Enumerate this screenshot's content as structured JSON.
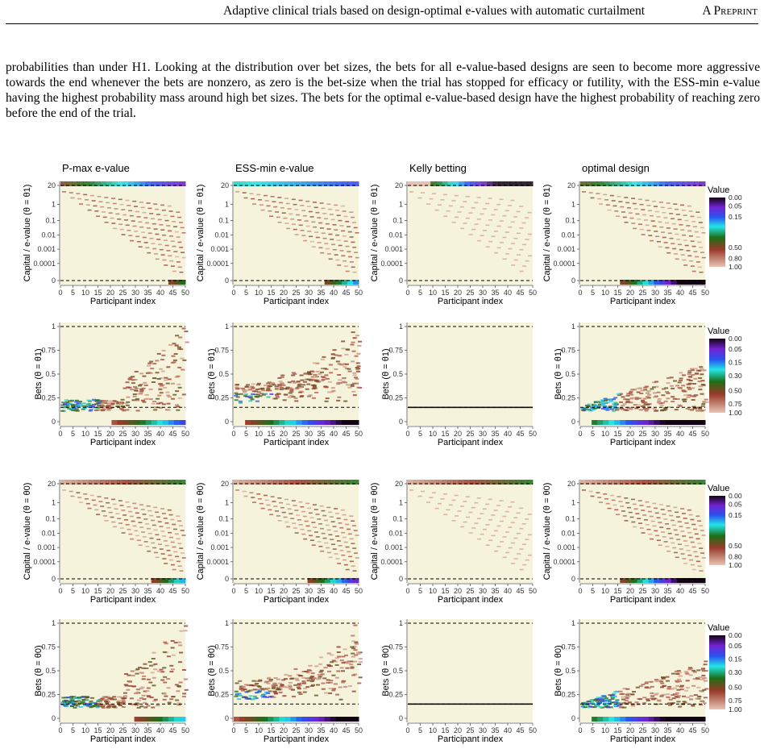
{
  "header": {
    "running_title": "Adaptive clinical trials based on design-optimal e-values with automatic curtailment",
    "preprint_tag": "A Preprint"
  },
  "body": {
    "paragraph": "probabilities than under H1. Looking at the distribution over bet sizes, the bets for all e-value-based designs are seen to become more aggressive towards the end whenever the bets are nonzero, as zero is the bet-size when the trial has stopped for efficacy or futility, with the ESS-min e-value having the highest probability mass around high bet sizes. The bets for the optimal e-value-based design have the highest probability of reaching zero before the end of the trial."
  },
  "chart_data": {
    "type": "heatmap",
    "column_titles": [
      "P-max e-value",
      "ESS-min e-value",
      "Kelly betting",
      "optimal design"
    ],
    "xlabel": "Participant index",
    "x_ticks": [
      0,
      5,
      10,
      15,
      20,
      25,
      30,
      35,
      40,
      45,
      50
    ],
    "xlim": [
      0,
      50
    ],
    "rows": [
      {
        "ylabel": "Capital / e-value (θ = θ1)",
        "y_ticks": [
          "20",
          "1",
          "0.1",
          "0.01",
          "0.001",
          "0.0001",
          "0"
        ],
        "legend_ticks": [
          "1.00",
          "0.80",
          "0.50",
          "0.15",
          "0.05",
          "0.00"
        ]
      },
      {
        "ylabel": "Bets (θ = θ1)",
        "y_ticks": [
          "1",
          "0.75",
          "0.5",
          "0.25",
          "0"
        ],
        "legend_ticks": [
          "1.00",
          "0.75",
          "0.50",
          "0.30",
          "0.15",
          "0.05",
          "0.00"
        ]
      },
      {
        "ylabel": "Capital / e-value (θ = θ0)",
        "y_ticks": [
          "20",
          "1",
          "0.1",
          "0.01",
          "0.001",
          "0.0001",
          "0"
        ],
        "legend_ticks": [
          "1.00",
          "0.80",
          "0.50",
          "0.15",
          "0.05",
          "0.00"
        ]
      },
      {
        "ylabel": "Bets (θ = θ0)",
        "y_ticks": [
          "1",
          "0.75",
          "0.5",
          "0.25",
          "0"
        ],
        "legend_ticks": [
          "1.00",
          "0.75",
          "0.50",
          "0.30",
          "0.15",
          "0.05",
          "0.00"
        ]
      }
    ],
    "legend_title": "Value",
    "reference_lines": {
      "capital": [
        "20",
        "0"
      ],
      "bets": [
        "1",
        "0.15"
      ]
    },
    "kelly_constant_bet": 0.15,
    "colors": {
      "background": "#f5f3dc",
      "low": "#e8c4b4",
      "mid": "#9a3a2a",
      "green": "#1e6d16",
      "cyan": "#22e6e6",
      "blue": "#2a52f0",
      "purple": "#7422d0",
      "high": "#120414"
    }
  }
}
